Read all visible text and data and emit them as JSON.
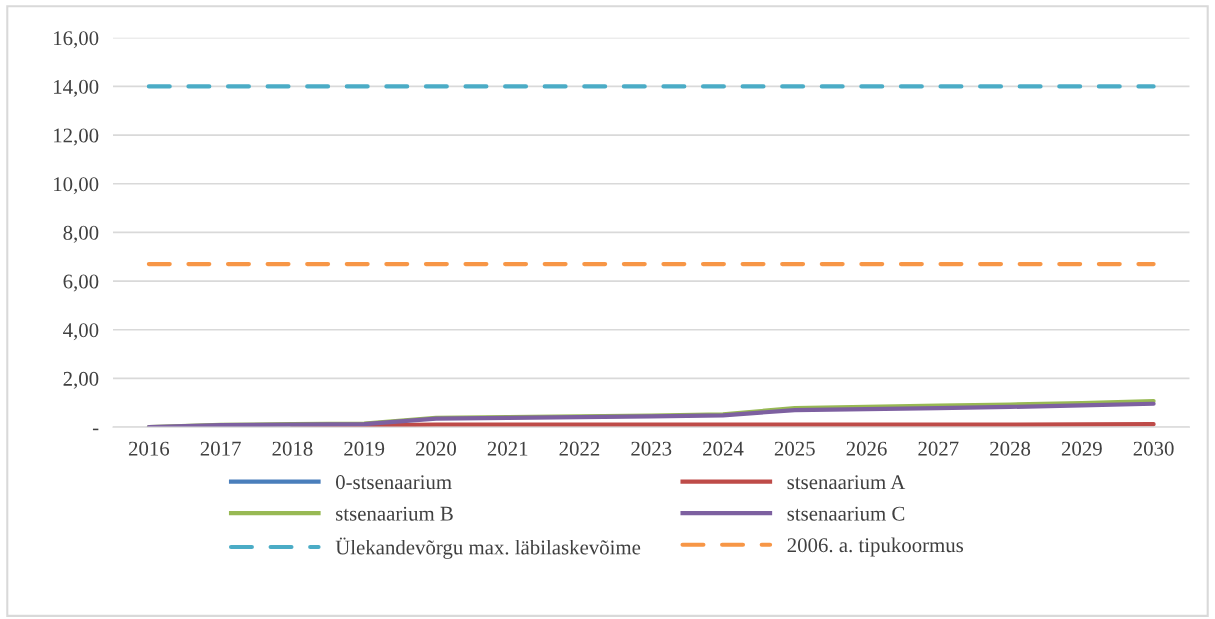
{
  "chart_data": {
    "type": "line",
    "categories": [
      "2016",
      "2017",
      "2018",
      "2019",
      "2020",
      "2021",
      "2022",
      "2023",
      "2024",
      "2025",
      "2026",
      "2027",
      "2028",
      "2029",
      "2030"
    ],
    "series": [
      {
        "name": "0-stsenaarium",
        "color": "#4a7ebb",
        "values": [
          null,
          null,
          null,
          null,
          null,
          null,
          null,
          null,
          null,
          null,
          null,
          null,
          null,
          null,
          null
        ]
      },
      {
        "name": "stsenaarium A",
        "color": "#be4b48",
        "values": [
          null,
          null,
          0.05,
          0.07,
          0.1,
          0.1,
          0.1,
          0.1,
          0.1,
          0.1,
          0.1,
          0.1,
          0.1,
          0.11,
          0.12
        ]
      },
      {
        "name": "stsenaarium B",
        "color": "#98b954",
        "values": [
          0,
          0.09,
          0.12,
          0.15,
          0.38,
          0.41,
          0.44,
          0.47,
          0.53,
          0.78,
          0.83,
          0.88,
          0.93,
          0.99,
          1.07
        ]
      },
      {
        "name": "stsenaarium C",
        "color": "#7d60a0",
        "values": [
          0,
          0.08,
          0.1,
          0.12,
          0.35,
          0.38,
          0.41,
          0.44,
          0.48,
          0.7,
          0.74,
          0.78,
          0.83,
          0.89,
          0.96
        ]
      },
      {
        "name": "Ülekandevõrgu max. läbilaskevõime",
        "color": "#4bacc6",
        "line_style": "dashed",
        "values": [
          14,
          14,
          14,
          14,
          14,
          14,
          14,
          14,
          14,
          14,
          14,
          14,
          14,
          14,
          14
        ]
      },
      {
        "name": "2006. a. tipukoormus",
        "color": "#f79646",
        "line_style": "dashed",
        "values": [
          6.7,
          6.7,
          6.7,
          6.7,
          6.7,
          6.7,
          6.7,
          6.7,
          6.7,
          6.7,
          6.7,
          6.7,
          6.7,
          6.7,
          6.7
        ]
      }
    ],
    "ylim": [
      0,
      16
    ],
    "yticks": [
      {
        "value": 0,
        "label": "-"
      },
      {
        "value": 2,
        "label": "2,00"
      },
      {
        "value": 4,
        "label": "4,00"
      },
      {
        "value": 6,
        "label": "6,00"
      },
      {
        "value": 8,
        "label": "8,00"
      },
      {
        "value": 10,
        "label": "10,00"
      },
      {
        "value": 12,
        "label": "12,00"
      },
      {
        "value": 14,
        "label": "14,00"
      },
      {
        "value": 16,
        "label": "16,00"
      }
    ],
    "grid": "y",
    "legend": "bottom",
    "line_style": "solid",
    "marker": "none"
  }
}
